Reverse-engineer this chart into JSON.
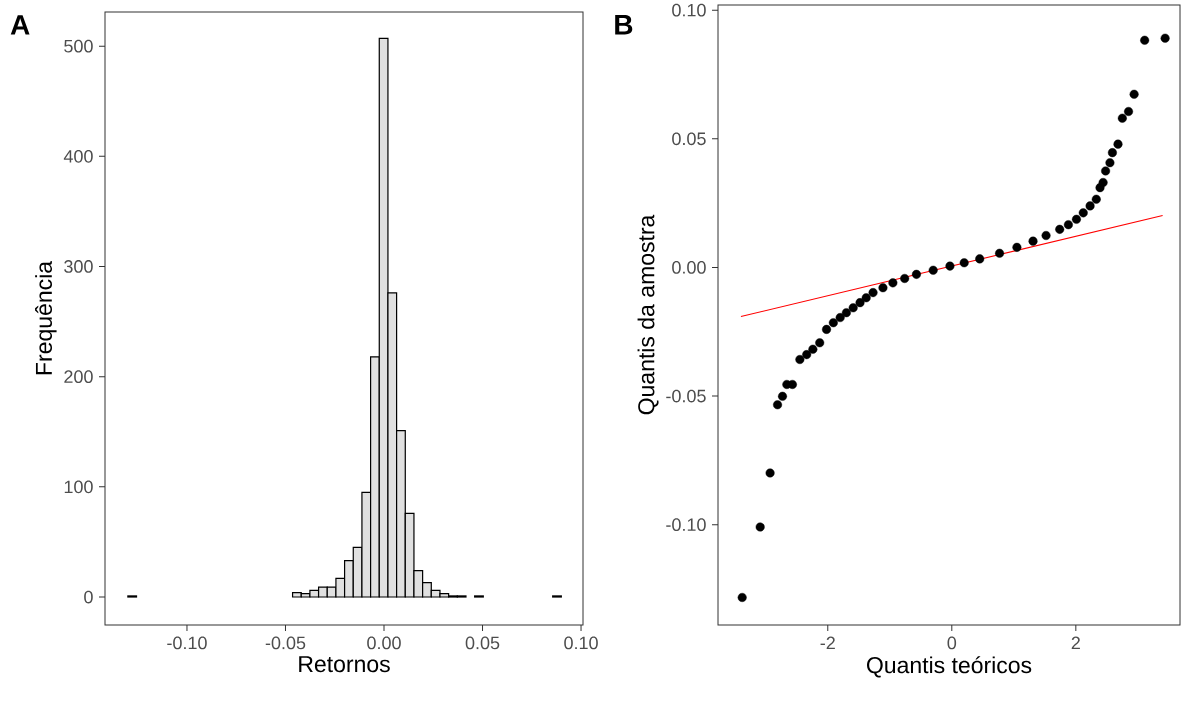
{
  "chart_data": [
    {
      "type": "histogram",
      "xlabel": "Retornos",
      "ylabel": "Frequência",
      "annotations": [
        "A"
      ],
      "color": "#e0e0e0",
      "bins": [
        -0.13,
        -0.1256,
        -0.1212,
        -0.1168,
        -0.1124,
        -0.108,
        -0.1036,
        -0.0992,
        -0.0948,
        -0.0904,
        -0.086,
        -0.0816,
        -0.0772,
        -0.0728,
        -0.0684,
        -0.064,
        -0.0596,
        -0.0552,
        -0.0508,
        -0.0464,
        -0.042,
        -0.0376,
        -0.0332,
        -0.0288,
        -0.0244,
        -0.02,
        -0.0156,
        -0.0112,
        -0.0068,
        -0.0024,
        0.002,
        0.0064,
        0.0108,
        0.0152,
        0.0196,
        0.024,
        0.0284,
        0.0328,
        0.0372,
        0.0416,
        0.046,
        0.0504,
        0.0548,
        0.0592,
        0.0636,
        0.068,
        0.0724,
        0.0768,
        0.0812,
        0.0856,
        0.09
      ],
      "values": [
        1,
        0,
        0,
        0,
        0,
        0,
        0,
        0,
        0,
        0,
        0,
        0,
        0,
        0,
        0,
        0,
        0,
        0,
        0,
        4,
        3,
        6,
        9,
        9,
        17,
        33,
        45,
        95,
        218,
        507,
        276,
        151,
        76,
        24,
        13,
        6,
        3,
        1,
        1,
        0,
        1,
        0,
        0,
        0,
        0,
        0,
        0,
        0,
        0,
        1
      ],
      "xlim": [
        -0.1416,
        0.101
      ],
      "ylim": [
        -25.4,
        531
      ],
      "xticks": [
        {
          "value": -0.1,
          "label": "-0.10"
        },
        {
          "value": -0.05,
          "label": "-0.05"
        },
        {
          "value": 0,
          "label": "0.00"
        },
        {
          "value": 0.05,
          "label": "0.05"
        },
        {
          "value": 0.1,
          "label": "0.10"
        }
      ],
      "yticks": [
        0,
        100,
        200,
        300,
        400,
        500
      ]
    },
    {
      "type": "scatter",
      "xlabel": "Quantis teóricos",
      "ylabel": "Quantis da amostra",
      "annotations": [
        "B"
      ],
      "series": [
        {
          "type": "scatter",
          "color": "#000000",
          "x": [
            -3.38,
            -3.09,
            -2.93,
            -2.81,
            -2.73,
            -2.66,
            -2.57,
            -2.45,
            -2.34,
            -2.24,
            -2.13,
            -2.02,
            -1.91,
            -1.8,
            -1.7,
            -1.59,
            -1.48,
            -1.38,
            -1.27,
            -1.11,
            -0.95,
            -0.76,
            -0.57,
            -0.3,
            -0.03,
            0.2,
            0.45,
            0.77,
            1.05,
            1.31,
            1.52,
            1.74,
            1.88,
            2.01,
            2.12,
            2.23,
            2.33,
            2.39,
            2.44,
            2.48,
            2.55,
            2.59,
            2.68,
            2.75,
            2.85,
            2.94,
            3.11,
            3.44
          ],
          "values": [
            -0.1283,
            -0.1009,
            -0.0799,
            -0.0534,
            -0.0501,
            -0.0455,
            -0.0455,
            -0.0358,
            -0.0339,
            -0.0318,
            -0.0293,
            -0.0241,
            -0.0215,
            -0.0195,
            -0.0176,
            -0.0157,
            -0.0137,
            -0.0118,
            -0.0098,
            -0.0079,
            -0.006,
            -0.0043,
            -0.0027,
            -0.0011,
            0.0005,
            0.0018,
            0.0033,
            0.0055,
            0.0078,
            0.0102,
            0.0124,
            0.0148,
            0.0166,
            0.0187,
            0.0212,
            0.0239,
            0.0265,
            0.031,
            0.033,
            0.0375,
            0.0407,
            0.0446,
            0.0479,
            0.058,
            0.0606,
            0.0673,
            0.0883,
            0.0891
          ]
        },
        {
          "type": "line",
          "color": "#ff0000",
          "x": [
            -3.4,
            3.4
          ],
          "values": [
            -0.0191,
            0.0202
          ]
        }
      ],
      "xlim": [
        -3.77,
        3.68
      ],
      "ylim": [
        -0.139,
        0.102
      ],
      "xticks": [
        -2,
        0,
        2
      ],
      "yticks": [
        {
          "value": -0.1,
          "label": "-0.10"
        },
        {
          "value": -0.05,
          "label": "-0.05"
        },
        {
          "value": 0,
          "label": "0.00"
        },
        {
          "value": 0.05,
          "label": "0.05"
        },
        {
          "value": 0.1,
          "label": "0.10"
        }
      ]
    }
  ]
}
